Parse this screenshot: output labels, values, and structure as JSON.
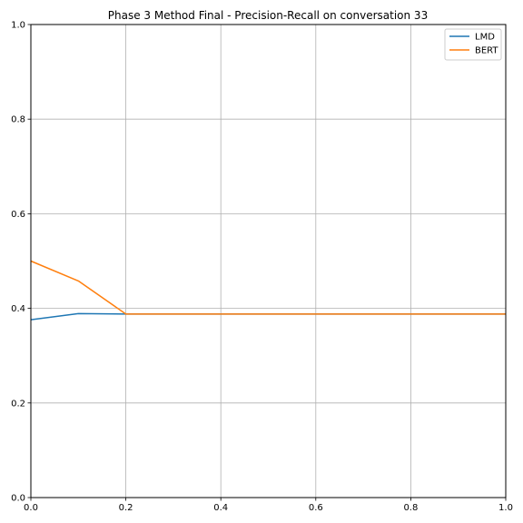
{
  "chart_data": {
    "type": "line",
    "title": "Phase 3 Method Final - Precision-Recall on conversation 33",
    "xlabel": "",
    "ylabel": "",
    "xlim": [
      0,
      1
    ],
    "ylim": [
      0,
      1
    ],
    "grid": true,
    "legend_position": "top-right",
    "x_ticks": [
      "0.0",
      "0.2",
      "0.4",
      "0.6",
      "0.8",
      "1.0"
    ],
    "y_ticks": [
      "0.0",
      "0.2",
      "0.4",
      "0.6",
      "0.8",
      "1.0"
    ],
    "series": [
      {
        "name": "LMD",
        "color": "#1f77b4",
        "x": [
          0.0,
          0.1,
          0.2,
          0.3,
          0.4,
          0.5,
          0.6,
          0.7,
          0.8,
          0.9,
          1.0
        ],
        "y": [
          0.376,
          0.389,
          0.388,
          0.388,
          0.388,
          0.388,
          0.388,
          0.388,
          0.388,
          0.388,
          0.388
        ]
      },
      {
        "name": "BERT",
        "color": "#ff7f0e",
        "x": [
          0.0,
          0.1,
          0.2,
          0.3,
          0.4,
          0.5,
          0.6,
          0.7,
          0.8,
          0.9,
          1.0
        ],
        "y": [
          0.5,
          0.458,
          0.388,
          0.388,
          0.388,
          0.388,
          0.388,
          0.388,
          0.388,
          0.388,
          0.388
        ]
      }
    ]
  }
}
